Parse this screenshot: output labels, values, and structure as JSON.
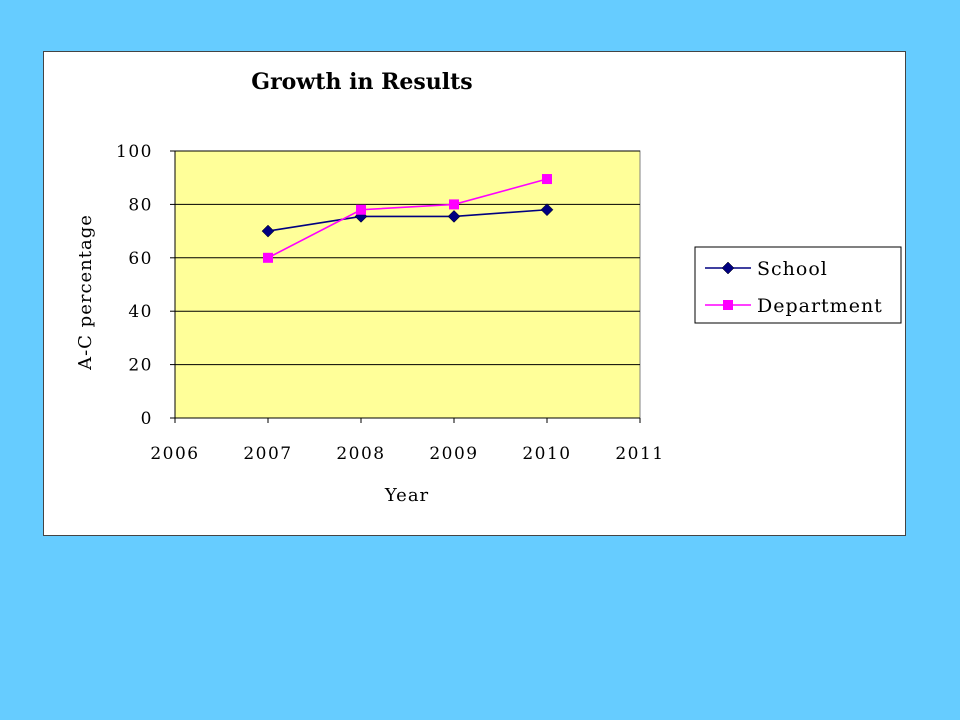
{
  "colors": {
    "background": "#66CCFF",
    "plot_area": "#FFFF99",
    "school": "#000080",
    "department": "#FF00FF"
  },
  "chart_data": {
    "type": "line",
    "title": "Growth in Results",
    "xlabel": "Year",
    "ylabel": "A-C percentage",
    "xlim": [
      2006,
      2011
    ],
    "ylim": [
      0,
      100
    ],
    "x_ticks": [
      "2006",
      "2007",
      "2008",
      "2009",
      "2010",
      "2011"
    ],
    "y_ticks": [
      "0",
      "20",
      "40",
      "60",
      "80",
      "100"
    ],
    "grid": true,
    "legend_position": "right",
    "series": [
      {
        "name": "School",
        "marker": "diamond",
        "x": [
          2007,
          2008,
          2009,
          2010
        ],
        "y": [
          70,
          75.5,
          75.5,
          78
        ]
      },
      {
        "name": "Department",
        "marker": "square",
        "x": [
          2007,
          2008,
          2009,
          2010
        ],
        "y": [
          60,
          78,
          80,
          89.5
        ]
      }
    ]
  }
}
